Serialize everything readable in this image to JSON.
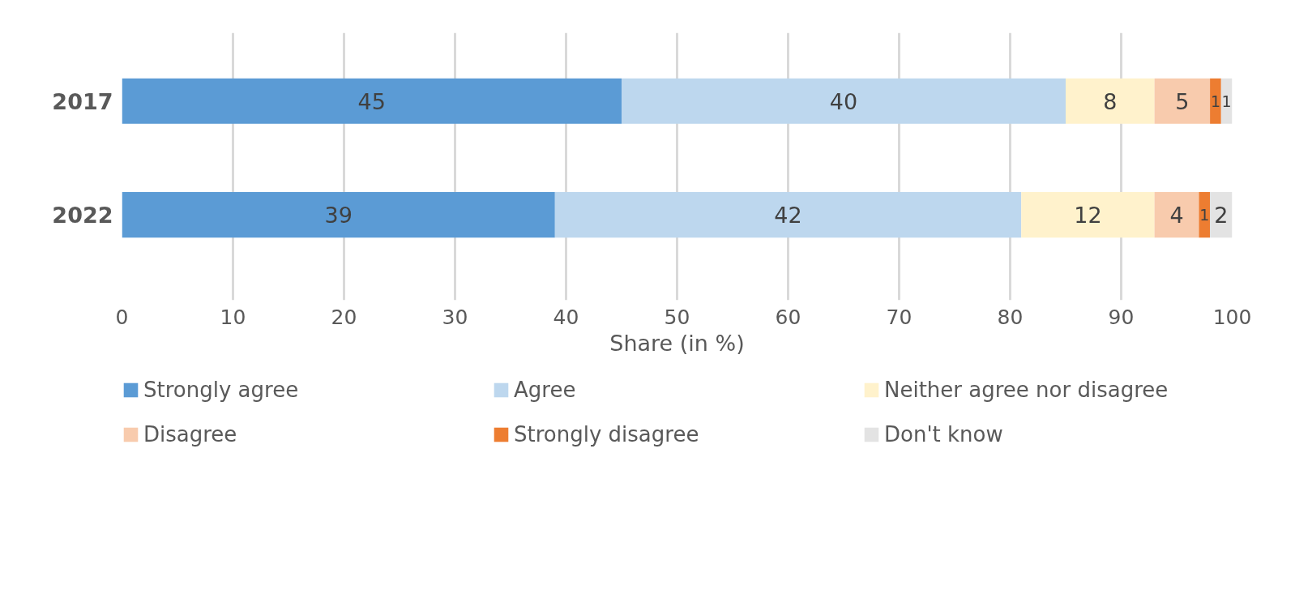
{
  "chart_data": {
    "type": "bar",
    "orientation": "horizontal",
    "stacked": true,
    "xlabel": "Share (in %)",
    "categories": [
      "2017",
      "2022"
    ],
    "series": [
      {
        "name": "Strongly agree",
        "color": "#5b9bd5",
        "values": [
          45,
          39
        ]
      },
      {
        "name": "Agree",
        "color": "#bdd7ee",
        "values": [
          40,
          42
        ]
      },
      {
        "name": "Neither agree nor disagree",
        "color": "#fff2cc",
        "values": [
          8,
          12
        ]
      },
      {
        "name": "Disagree",
        "color": "#f8cbad",
        "values": [
          5,
          4
        ]
      },
      {
        "name": "Strongly disagree",
        "color": "#ed7d31",
        "values": [
          1,
          1
        ]
      },
      {
        "name": "Don't know",
        "color": "#e3e3e3",
        "values": [
          1,
          2
        ]
      }
    ],
    "xlim": [
      0,
      100
    ],
    "xticks": [
      0,
      10,
      20,
      30,
      40,
      50,
      60,
      70,
      80,
      90,
      100
    ],
    "grid": "x",
    "data_labels": true,
    "legend": "bottom"
  }
}
